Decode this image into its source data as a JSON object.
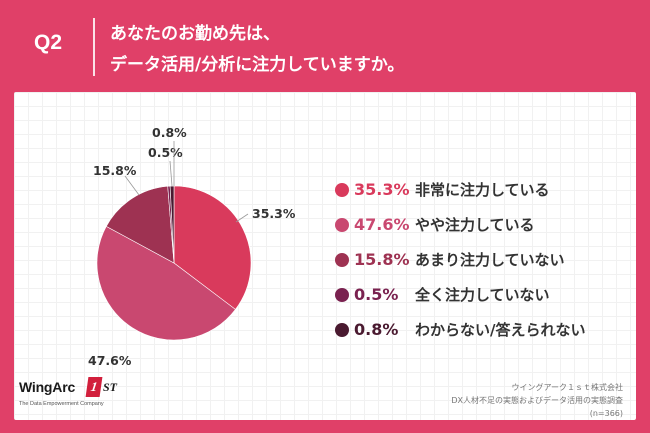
{
  "header": {
    "question_label": "Q2",
    "title_line1": "あなたのお勤め先は、",
    "title_line2": "データ活用/分析に注力していますか。"
  },
  "chart_data": {
    "type": "pie",
    "title": "あなたのお勤め先は、データ活用/分析に注力していますか。",
    "unit": "%",
    "start_angle_deg": 0,
    "direction": "clockwise",
    "slices": [
      {
        "label": "非常に注力している",
        "value": 35.3,
        "display": "35.3%",
        "color": "#d93a5c"
      },
      {
        "label": "やや注力している",
        "value": 47.6,
        "display": "47.6%",
        "color": "#c94870"
      },
      {
        "label": "あまり注力していない",
        "value": 15.8,
        "display": "15.8%",
        "color": "#9e3252"
      },
      {
        "label": "全く注力していない",
        "value": 0.5,
        "display": "0.5%",
        "color": "#7a2250"
      },
      {
        "label": "わからない/答えられない",
        "value": 0.8,
        "display": "0.8%",
        "color": "#4a1a30"
      }
    ]
  },
  "logo": {
    "brand_text": "WingArc",
    "brand_mark": "1",
    "brand_suffix": "ST",
    "tagline": "The Data Empowerment Company"
  },
  "source": {
    "line1": "ウイングアーク１ｓｔ株式会社",
    "line2": "DX人材不足の実態およびデータ活用の実態調査",
    "line3": "(n=366)"
  },
  "colors": {
    "background": "#e04068",
    "panel": "#ffffff"
  }
}
